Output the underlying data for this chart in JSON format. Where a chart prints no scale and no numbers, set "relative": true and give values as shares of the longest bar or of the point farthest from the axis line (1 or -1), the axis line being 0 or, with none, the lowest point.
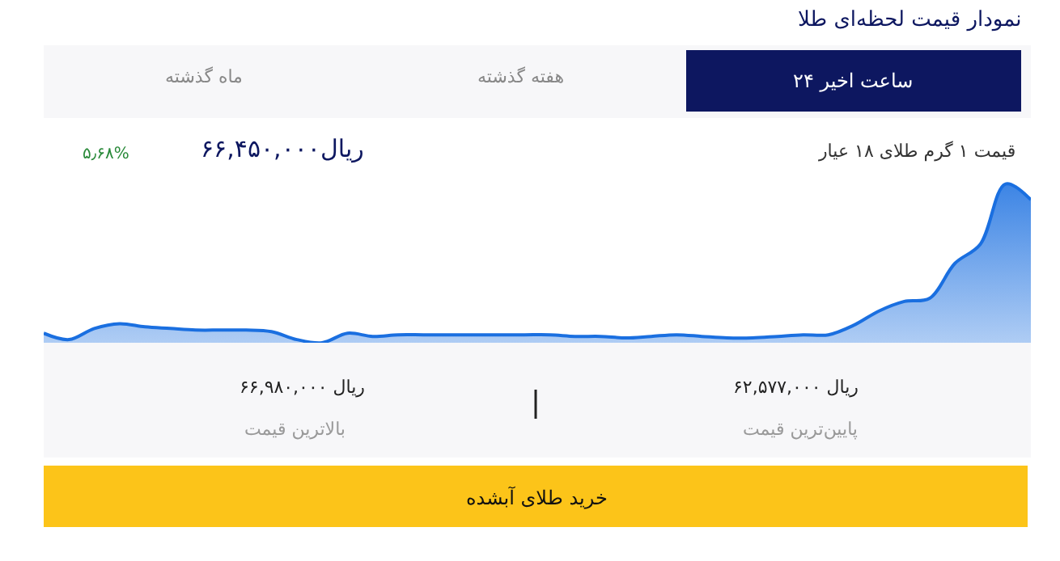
{
  "chart_data": {
    "type": "area",
    "relative": true,
    "title": "نمودار قیمت لحظه‌ای طلا",
    "subtitle": "قیمت ۱ گرم طلای ۱۸ عیار",
    "categories": [
      null,
      null,
      null,
      null,
      null,
      null,
      null,
      null,
      null,
      null,
      null,
      null,
      null,
      null,
      null,
      null,
      null,
      null,
      null,
      null,
      null,
      null,
      null,
      null,
      null,
      null,
      null,
      null,
      null,
      null,
      null,
      null,
      null,
      null,
      null,
      null,
      null,
      null,
      null,
      null
    ],
    "series": [
      {
        "color": "#1a6fe0",
        "values": [
          0.06,
          0.02,
          0.09,
          0.12,
          0.1,
          0.09,
          0.08,
          0.08,
          0.08,
          0.07,
          0.02,
          0.0,
          0.06,
          0.04,
          0.05,
          0.05,
          0.05,
          0.05,
          0.05,
          0.05,
          0.05,
          0.04,
          0.04,
          0.03,
          0.04,
          0.05,
          0.04,
          0.03,
          0.03,
          0.04,
          0.05,
          0.05,
          0.11,
          0.2,
          0.26,
          0.28,
          0.5,
          0.62,
          1.0,
          0.9
        ]
      }
    ],
    "annotations": [
      "۲۴ ساعت اخیر",
      "هفته گذشته",
      "ماه گذشته",
      "۶۶,۴۵۰,۰۰۰ریال",
      "۵٫۶۸%",
      "۶۲,۵۷۷,۰۰۰ ریال",
      "پایین‌ترین قیمت",
      "۶۶,۹۸۰,۰۰۰ ریال",
      "بالاترین قیمت",
      "خرید طلای آبشده"
    ],
    "legend": false
  }
}
